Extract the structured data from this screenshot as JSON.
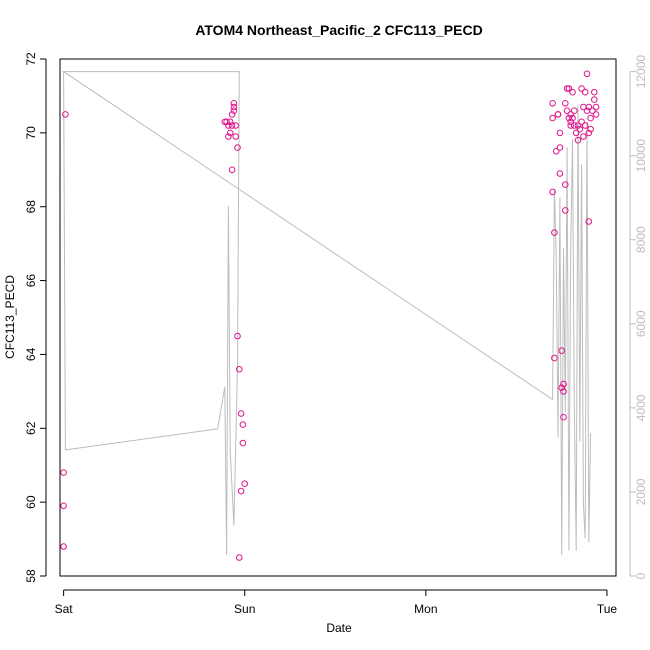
{
  "chart_data": {
    "type": "scatter",
    "title": "ATOM4 Northeast_Pacific_2 CFC113_PECD",
    "xlabel": "Date",
    "ylabel": "CFC113_PECD",
    "x_unit": "days after Sat 00:00",
    "xlim": [
      -0.02,
      3.05
    ],
    "ylim": [
      58,
      72
    ],
    "y2lim": [
      0,
      12300
    ],
    "x_ticks": [
      {
        "value": 0,
        "label": "Sat"
      },
      {
        "value": 1,
        "label": "Sun"
      },
      {
        "value": 2,
        "label": "Mon"
      },
      {
        "value": 3,
        "label": "Tue"
      }
    ],
    "y_ticks": [
      58,
      60,
      62,
      64,
      66,
      68,
      70,
      72
    ],
    "y2_ticks": [
      0,
      2000,
      4000,
      6000,
      8000,
      10000,
      12000
    ],
    "colors": {
      "points": "#e0148c",
      "depth_line": "#bdbdbd",
      "axis": "#000000",
      "right_axis": "#bdbdbd"
    },
    "series": [
      {
        "kind": "points",
        "axis": "left",
        "points": [
          [
            0.0,
            58.8
          ],
          [
            0.0,
            59.9
          ],
          [
            0.0,
            60.8
          ],
          [
            0.01,
            70.5
          ],
          [
            0.89,
            70.3
          ],
          [
            0.9,
            70.3
          ],
          [
            0.91,
            70.2
          ],
          [
            0.91,
            69.9
          ],
          [
            0.92,
            70.0
          ],
          [
            0.92,
            70.3
          ],
          [
            0.93,
            70.2
          ],
          [
            0.93,
            70.5
          ],
          [
            0.93,
            69.0
          ],
          [
            0.94,
            70.8
          ],
          [
            0.94,
            70.7
          ],
          [
            0.94,
            70.6
          ],
          [
            0.95,
            70.2
          ],
          [
            0.95,
            69.9
          ],
          [
            0.96,
            69.6
          ],
          [
            0.96,
            64.5
          ],
          [
            0.97,
            63.6
          ],
          [
            0.97,
            58.5
          ],
          [
            0.98,
            60.3
          ],
          [
            0.98,
            62.4
          ],
          [
            0.99,
            62.1
          ],
          [
            0.99,
            61.6
          ],
          [
            1.0,
            60.5
          ],
          [
            2.7,
            70.8
          ],
          [
            2.7,
            70.4
          ],
          [
            2.7,
            68.4
          ],
          [
            2.71,
            63.9
          ],
          [
            2.71,
            67.3
          ],
          [
            2.72,
            69.5
          ],
          [
            2.73,
            70.5
          ],
          [
            2.73,
            70.5
          ],
          [
            2.74,
            70.0
          ],
          [
            2.74,
            69.6
          ],
          [
            2.74,
            68.9
          ],
          [
            2.75,
            64.1
          ],
          [
            2.75,
            63.1
          ],
          [
            2.76,
            63.0
          ],
          [
            2.76,
            63.2
          ],
          [
            2.76,
            62.3
          ],
          [
            2.77,
            67.9
          ],
          [
            2.77,
            68.6
          ],
          [
            2.77,
            70.8
          ],
          [
            2.78,
            70.6
          ],
          [
            2.78,
            71.2
          ],
          [
            2.79,
            71.2
          ],
          [
            2.79,
            70.4
          ],
          [
            2.8,
            70.5
          ],
          [
            2.8,
            70.3
          ],
          [
            2.8,
            70.2
          ],
          [
            2.81,
            70.4
          ],
          [
            2.81,
            71.1
          ],
          [
            2.82,
            70.6
          ],
          [
            2.82,
            70.2
          ],
          [
            2.83,
            70.0
          ],
          [
            2.84,
            69.8
          ],
          [
            2.84,
            70.2
          ],
          [
            2.85,
            70.1
          ],
          [
            2.86,
            71.2
          ],
          [
            2.86,
            70.3
          ],
          [
            2.87,
            70.7
          ],
          [
            2.87,
            69.9
          ],
          [
            2.88,
            71.1
          ],
          [
            2.88,
            70.2
          ],
          [
            2.89,
            71.6
          ],
          [
            2.89,
            70.6
          ],
          [
            2.9,
            70.7
          ],
          [
            2.9,
            67.6
          ],
          [
            2.9,
            70.0
          ],
          [
            2.91,
            70.1
          ],
          [
            2.91,
            70.4
          ],
          [
            2.92,
            70.6
          ],
          [
            2.93,
            70.9
          ],
          [
            2.93,
            71.1
          ],
          [
            2.94,
            70.5
          ],
          [
            2.94,
            70.7
          ]
        ]
      },
      {
        "kind": "line",
        "axis": "right",
        "points": [
          [
            0.0,
            12000
          ],
          [
            0.01,
            3000
          ],
          [
            0.85,
            3500
          ],
          [
            0.89,
            4500
          ],
          [
            0.9,
            500
          ],
          [
            0.91,
            8800
          ],
          [
            0.92,
            3000
          ],
          [
            0.94,
            1200
          ],
          [
            0.96,
            5000
          ],
          [
            0.97,
            12000
          ],
          [
            0.0,
            12000
          ],
          [
            2.7,
            4200
          ],
          [
            2.71,
            9200
          ],
          [
            2.72,
            7600
          ],
          [
            2.73,
            3300
          ],
          [
            2.74,
            9000
          ],
          [
            2.75,
            500
          ],
          [
            2.76,
            7800
          ],
          [
            2.77,
            3900
          ],
          [
            2.78,
            10200
          ],
          [
            2.79,
            600
          ],
          [
            2.8,
            7800
          ],
          [
            2.81,
            10400
          ],
          [
            2.82,
            4100
          ],
          [
            2.83,
            600
          ],
          [
            2.84,
            11200
          ],
          [
            2.85,
            3200
          ],
          [
            2.86,
            9800
          ],
          [
            2.87,
            1700
          ],
          [
            2.88,
            900
          ],
          [
            2.89,
            10800
          ],
          [
            2.9,
            800
          ],
          [
            2.91,
            3400
          ]
        ]
      }
    ]
  }
}
